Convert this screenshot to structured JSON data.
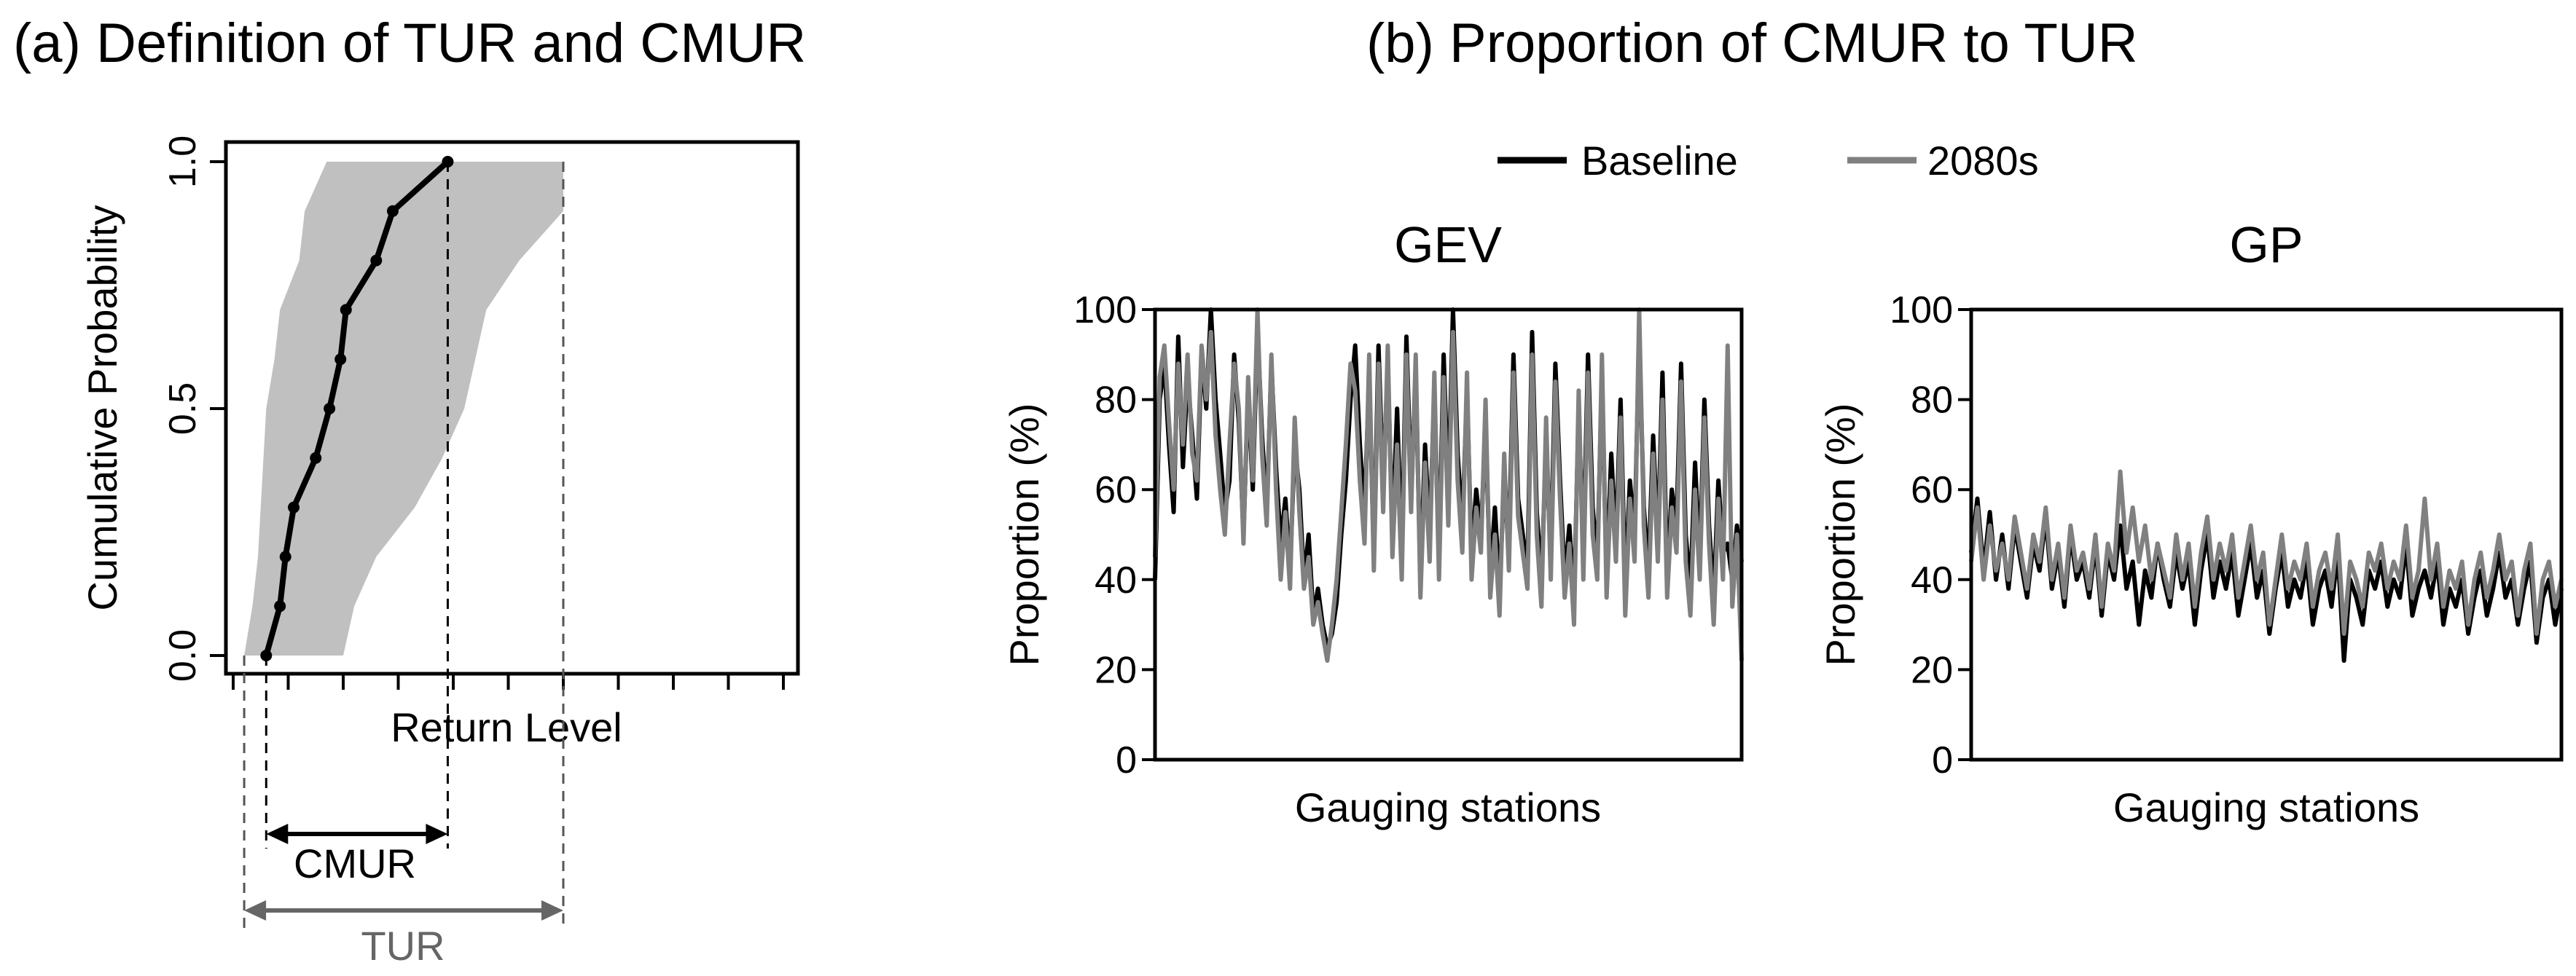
{
  "panel_a": {
    "title": "(a) Definition of TUR and CMUR",
    "ylabel": "Cumulative Probability",
    "xlabel": "Return Level",
    "cmur_label": "CMUR",
    "tur_label": "TUR"
  },
  "panel_b": {
    "title": "(b) Proportion of CMUR to TUR",
    "legend": [
      {
        "label": "Baseline",
        "color": "#000000"
      },
      {
        "label": "2080s",
        "color": "#808080"
      }
    ]
  },
  "chart_data": [
    {
      "type": "line",
      "title": "(a) Definition of TUR and CMUR",
      "xlabel": "Return Level",
      "ylabel": "Cumulative Probability",
      "x_tick_labels": [],
      "y_tick_labels": [
        "0.0",
        "0.5",
        "1.0"
      ],
      "ylim": [
        0,
        1
      ],
      "xlim": [
        0,
        10
      ],
      "series": [
        {
          "color": "#000000",
          "marker": "dot",
          "x": [
            0.6,
            0.85,
            0.95,
            1.1,
            1.5,
            1.75,
            1.95,
            2.05,
            2.6,
            2.9,
            3.9
          ],
          "y": [
            0.0,
            0.1,
            0.2,
            0.3,
            0.4,
            0.5,
            0.6,
            0.7,
            0.8,
            0.9,
            1.0
          ]
        }
      ],
      "band": {
        "color": "#c0c0c0",
        "y": [
          0.0,
          0.1,
          0.2,
          0.3,
          0.4,
          0.5,
          0.6,
          0.7,
          0.8,
          0.9,
          1.0
        ],
        "lower": [
          0.2,
          0.35,
          0.45,
          0.5,
          0.55,
          0.6,
          0.75,
          0.85,
          1.2,
          1.3,
          1.7
        ],
        "upper": [
          2.0,
          2.2,
          2.6,
          3.3,
          3.8,
          4.2,
          4.4,
          4.6,
          5.2,
          6.0,
          6.0
        ]
      },
      "annotations": {
        "cmur_range": [
          0.6,
          3.9
        ],
        "tur_range": [
          0.2,
          6.0
        ]
      }
    },
    {
      "type": "line",
      "title": "GEV",
      "xlabel": "Gauging stations",
      "ylabel": "Proportion (%)",
      "ylim": [
        0,
        100
      ],
      "y_ticks": [
        0,
        20,
        40,
        60,
        80,
        100
      ],
      "series": [
        {
          "name": "Baseline",
          "color": "#000000",
          "values": [
            40,
            80,
            88,
            70,
            55,
            94,
            65,
            85,
            72,
            58,
            90,
            78,
            100,
            80,
            68,
            55,
            62,
            90,
            75,
            50,
            82,
            60,
            96,
            72,
            55,
            88,
            65,
            48,
            58,
            42,
            70,
            60,
            40,
            50,
            32,
            38,
            30,
            25,
            28,
            35,
            50,
            62,
            80,
            92,
            70,
            55,
            85,
            45,
            92,
            60,
            88,
            50,
            78,
            45,
            94,
            60,
            86,
            40,
            70,
            50,
            82,
            44,
            90,
            58,
            100,
            68,
            52,
            82,
            45,
            60,
            50,
            74,
            40,
            56,
            38,
            62,
            46,
            90,
            58,
            50,
            42,
            95,
            55,
            40,
            70,
            45,
            88,
            62,
            40,
            52,
            35,
            78,
            46,
            90,
            56,
            44,
            85,
            40,
            68,
            48,
            80,
            38,
            62,
            50,
            94,
            56,
            42,
            72,
            48,
            86,
            40,
            60,
            52,
            88,
            50,
            38,
            66,
            44,
            80,
            52,
            36,
            62,
            46,
            48,
            40,
            52,
            44
          ]
        },
        {
          "name": "2080s",
          "color": "#808080",
          "values": [
            45,
            85,
            92,
            75,
            60,
            88,
            70,
            90,
            68,
            62,
            92,
            80,
            95,
            72,
            60,
            50,
            70,
            88,
            78,
            48,
            85,
            62,
            100,
            68,
            52,
            90,
            60,
            40,
            55,
            38,
            76,
            55,
            38,
            45,
            30,
            35,
            28,
            22,
            30,
            40,
            55,
            70,
            88,
            82,
            62,
            48,
            90,
            42,
            88,
            55,
            92,
            45,
            70,
            40,
            90,
            55,
            90,
            36,
            66,
            44,
            86,
            40,
            85,
            52,
            95,
            62,
            46,
            86,
            40,
            56,
            46,
            80,
            36,
            50,
            32,
            68,
            42,
            86,
            54,
            46,
            38,
            90,
            50,
            34,
            76,
            40,
            84,
            58,
            36,
            48,
            30,
            82,
            40,
            86,
            50,
            40,
            90,
            36,
            62,
            44,
            76,
            32,
            58,
            44,
            100,
            52,
            36,
            68,
            44,
            80,
            36,
            56,
            46,
            84,
            44,
            32,
            60,
            40,
            76,
            48,
            30,
            58,
            40,
            92,
            34,
            50,
            22
          ]
        }
      ]
    },
    {
      "type": "line",
      "title": "GP",
      "xlabel": "Gauging stations",
      "ylabel": "Proportion (%)",
      "ylim": [
        0,
        100
      ],
      "y_ticks": [
        0,
        20,
        40,
        60,
        80,
        100
      ],
      "series": [
        {
          "name": "Baseline",
          "color": "#000000",
          "values": [
            46,
            58,
            42,
            55,
            40,
            50,
            38,
            52,
            44,
            36,
            48,
            42,
            54,
            38,
            46,
            34,
            50,
            40,
            44,
            36,
            48,
            32,
            46,
            40,
            52,
            38,
            44,
            30,
            42,
            36,
            48,
            40,
            34,
            46,
            38,
            44,
            30,
            42,
            50,
            36,
            44,
            38,
            46,
            32,
            40,
            48,
            36,
            42,
            28,
            38,
            46,
            34,
            40,
            36,
            44,
            30,
            38,
            42,
            34,
            46,
            22,
            40,
            36,
            30,
            42,
            38,
            44,
            34,
            40,
            36,
            48,
            32,
            38,
            42,
            36,
            44,
            30,
            38,
            34,
            40,
            28,
            36,
            42,
            32,
            38,
            46,
            36,
            40,
            30,
            38,
            44,
            26,
            36,
            40,
            30,
            38
          ]
        },
        {
          "name": "2080s",
          "color": "#808080",
          "values": [
            44,
            56,
            40,
            52,
            42,
            48,
            40,
            54,
            46,
            38,
            50,
            44,
            56,
            40,
            48,
            36,
            52,
            42,
            46,
            38,
            50,
            34,
            48,
            42,
            64,
            46,
            56,
            44,
            52,
            40,
            48,
            42,
            36,
            50,
            40,
            48,
            34,
            46,
            54,
            40,
            48,
            42,
            50,
            36,
            44,
            52,
            40,
            46,
            30,
            40,
            50,
            38,
            44,
            40,
            48,
            34,
            42,
            46,
            38,
            50,
            28,
            44,
            40,
            34,
            46,
            42,
            48,
            38,
            44,
            40,
            52,
            36,
            42,
            58,
            40,
            48,
            34,
            42,
            38,
            44,
            30,
            40,
            46,
            36,
            42,
            50,
            40,
            44,
            32,
            42,
            48,
            28,
            40,
            44,
            34,
            40
          ]
        }
      ]
    }
  ]
}
